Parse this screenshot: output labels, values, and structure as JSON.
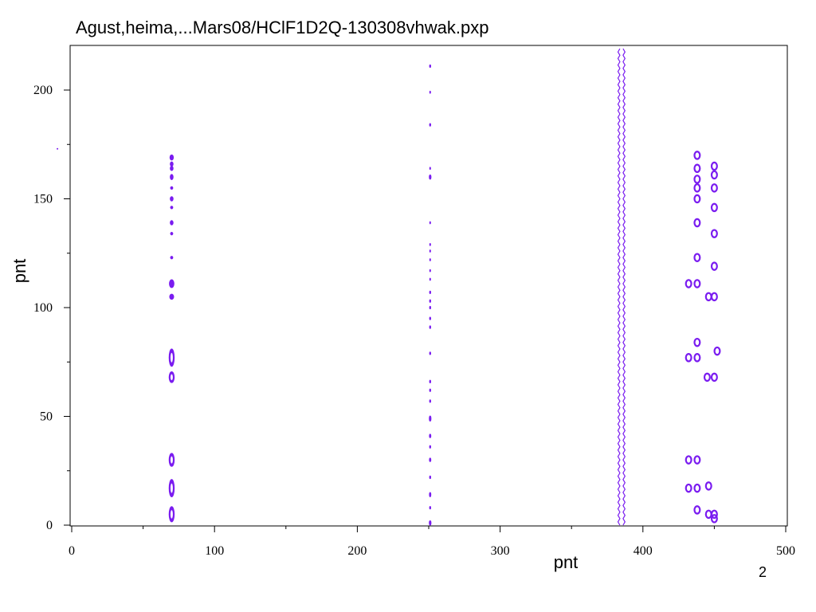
{
  "chart_data": {
    "type": "contour",
    "title": "Agust,heima,...Mars08/HClF1D2Q-130308vhwak.pxp",
    "xlabel": "pnt",
    "ylabel": "pnt",
    "xlim": [
      -1,
      500
    ],
    "ylim": [
      -2,
      220
    ],
    "x_ticks": [
      0,
      100,
      200,
      300,
      400,
      500
    ],
    "y_ticks": [
      0,
      50,
      100,
      150,
      200
    ],
    "grid": false,
    "contour_color": "#7a1cf0",
    "columns": [
      {
        "x": 70,
        "peaks": [
          {
            "y": 5,
            "w": 1.8,
            "h": 3.5
          },
          {
            "y": 17,
            "w": 1.8,
            "h": 4
          },
          {
            "y": 30,
            "w": 1.8,
            "h": 3
          },
          {
            "y": 68,
            "w": 1.8,
            "h": 2.5
          },
          {
            "y": 77,
            "w": 1.8,
            "h": 4
          },
          {
            "y": 105,
            "w": 1.4,
            "h": 1.2
          },
          {
            "y": 111,
            "w": 1.6,
            "h": 1.8
          },
          {
            "y": 123,
            "w": 0.8,
            "h": 0.6
          },
          {
            "y": 134,
            "w": 0.8,
            "h": 0.6
          },
          {
            "y": 139,
            "w": 1,
            "h": 1
          },
          {
            "y": 146,
            "w": 0.8,
            "h": 0.6
          },
          {
            "y": 150,
            "w": 1,
            "h": 1
          },
          {
            "y": 155,
            "w": 0.8,
            "h": 0.6
          },
          {
            "y": 160,
            "w": 1,
            "h": 1.2
          },
          {
            "y": 164,
            "w": 1,
            "h": 1
          },
          {
            "y": 166,
            "w": 1,
            "h": 1
          },
          {
            "y": 169,
            "w": 1.2,
            "h": 1.2
          }
        ]
      },
      {
        "x": 251,
        "peaks": [
          {
            "y": 1,
            "w": 0.6,
            "h": 1
          },
          {
            "y": 8,
            "w": 0.4,
            "h": 0.6
          },
          {
            "y": 14,
            "w": 0.5,
            "h": 1
          },
          {
            "y": 22,
            "w": 0.4,
            "h": 0.6
          },
          {
            "y": 30,
            "w": 0.5,
            "h": 0.8
          },
          {
            "y": 36,
            "w": 0.4,
            "h": 0.6
          },
          {
            "y": 41,
            "w": 0.5,
            "h": 0.8
          },
          {
            "y": 49,
            "w": 0.6,
            "h": 1.2
          },
          {
            "y": 57,
            "w": 0.4,
            "h": 0.6
          },
          {
            "y": 62,
            "w": 0.4,
            "h": 0.6
          },
          {
            "y": 66,
            "w": 0.4,
            "h": 0.6
          },
          {
            "y": 79,
            "w": 0.4,
            "h": 0.6
          },
          {
            "y": 91,
            "w": 0.4,
            "h": 0.6
          },
          {
            "y": 95,
            "w": 0.4,
            "h": 0.6
          },
          {
            "y": 100,
            "w": 0.4,
            "h": 0.6
          },
          {
            "y": 103,
            "w": 0.4,
            "h": 0.6
          },
          {
            "y": 107,
            "w": 0.4,
            "h": 0.6
          },
          {
            "y": 113,
            "w": 0.3,
            "h": 0.5
          },
          {
            "y": 117,
            "w": 0.3,
            "h": 0.5
          },
          {
            "y": 122,
            "w": 0.3,
            "h": 0.5
          },
          {
            "y": 126,
            "w": 0.3,
            "h": 0.5
          },
          {
            "y": 129,
            "w": 0.3,
            "h": 0.5
          },
          {
            "y": 139,
            "w": 0.3,
            "h": 0.5
          },
          {
            "y": 160,
            "w": 0.6,
            "h": 1
          },
          {
            "y": 164,
            "w": 0.3,
            "h": 0.5
          },
          {
            "y": 184,
            "w": 0.4,
            "h": 0.6
          },
          {
            "y": 199,
            "w": 0.3,
            "h": 0.5
          },
          {
            "y": 211,
            "w": 0.4,
            "h": 0.6
          }
        ]
      }
    ],
    "ridge": {
      "x": 385,
      "ymin": 0,
      "ymax": 220,
      "width": 1.8
    },
    "ring_peaks": [
      {
        "x": 432,
        "y": 17
      },
      {
        "x": 438,
        "y": 17
      },
      {
        "x": 432,
        "y": 30
      },
      {
        "x": 438,
        "y": 30
      },
      {
        "x": 438,
        "y": 7
      },
      {
        "x": 446,
        "y": 5
      },
      {
        "x": 450,
        "y": 3
      },
      {
        "x": 450,
        "y": 5
      },
      {
        "x": 446,
        "y": 18
      },
      {
        "x": 432,
        "y": 77
      },
      {
        "x": 438,
        "y": 77
      },
      {
        "x": 438,
        "y": 84
      },
      {
        "x": 445,
        "y": 68
      },
      {
        "x": 450,
        "y": 68
      },
      {
        "x": 452,
        "y": 80
      },
      {
        "x": 432,
        "y": 111
      },
      {
        "x": 438,
        "y": 111
      },
      {
        "x": 446,
        "y": 105
      },
      {
        "x": 450,
        "y": 105
      },
      {
        "x": 450,
        "y": 119
      },
      {
        "x": 438,
        "y": 123
      },
      {
        "x": 450,
        "y": 134
      },
      {
        "x": 438,
        "y": 139
      },
      {
        "x": 450,
        "y": 146
      },
      {
        "x": 438,
        "y": 150
      },
      {
        "x": 438,
        "y": 155
      },
      {
        "x": 450,
        "y": 155
      },
      {
        "x": 438,
        "y": 159
      },
      {
        "x": 450,
        "y": 161
      },
      {
        "x": 438,
        "y": 164
      },
      {
        "x": 450,
        "y": 165
      },
      {
        "x": 438,
        "y": 170
      }
    ],
    "stray_points": [
      {
        "x": -10,
        "y": 173
      }
    ]
  },
  "page_number": "2"
}
